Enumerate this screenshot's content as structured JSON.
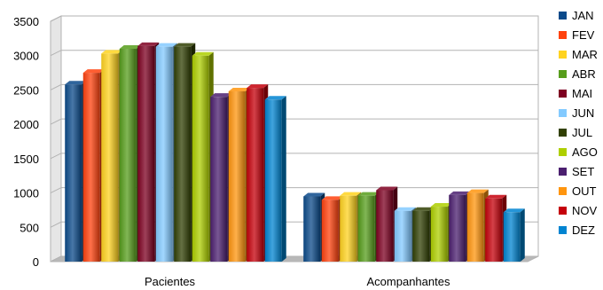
{
  "chart_data": {
    "type": "bar",
    "title": "",
    "xlabel": "",
    "ylabel": "",
    "ylim": [
      0,
      3500
    ],
    "yticks": [
      0,
      500,
      1000,
      1500,
      2000,
      2500,
      3000,
      3500
    ],
    "grid": true,
    "legend_position": "right",
    "categories": [
      "Pacientes",
      "Acompanhantes"
    ],
    "series": [
      {
        "name": "JAN",
        "color": "#0b4a8a",
        "values": [
          2580,
          950
        ]
      },
      {
        "name": "FEV",
        "color": "#ff420e",
        "values": [
          2750,
          900
        ]
      },
      {
        "name": "MAR",
        "color": "#ffd320",
        "values": [
          3030,
          960
        ]
      },
      {
        "name": "ABR",
        "color": "#579d1c",
        "values": [
          3100,
          960
        ]
      },
      {
        "name": "MAI",
        "color": "#7e0021",
        "values": [
          3140,
          1040
        ]
      },
      {
        "name": "JUN",
        "color": "#83caff",
        "values": [
          3130,
          740
        ]
      },
      {
        "name": "JUL",
        "color": "#314004",
        "values": [
          3130,
          740
        ]
      },
      {
        "name": "AGO",
        "color": "#aecf00",
        "values": [
          3000,
          800
        ]
      },
      {
        "name": "SET",
        "color": "#4b1f6f",
        "values": [
          2400,
          970
        ]
      },
      {
        "name": "OUT",
        "color": "#ff950e",
        "values": [
          2480,
          1000
        ]
      },
      {
        "name": "NOV",
        "color": "#c5000b",
        "values": [
          2530,
          920
        ]
      },
      {
        "name": "DEZ",
        "color": "#0084d1",
        "values": [
          2360,
          720
        ]
      }
    ]
  }
}
